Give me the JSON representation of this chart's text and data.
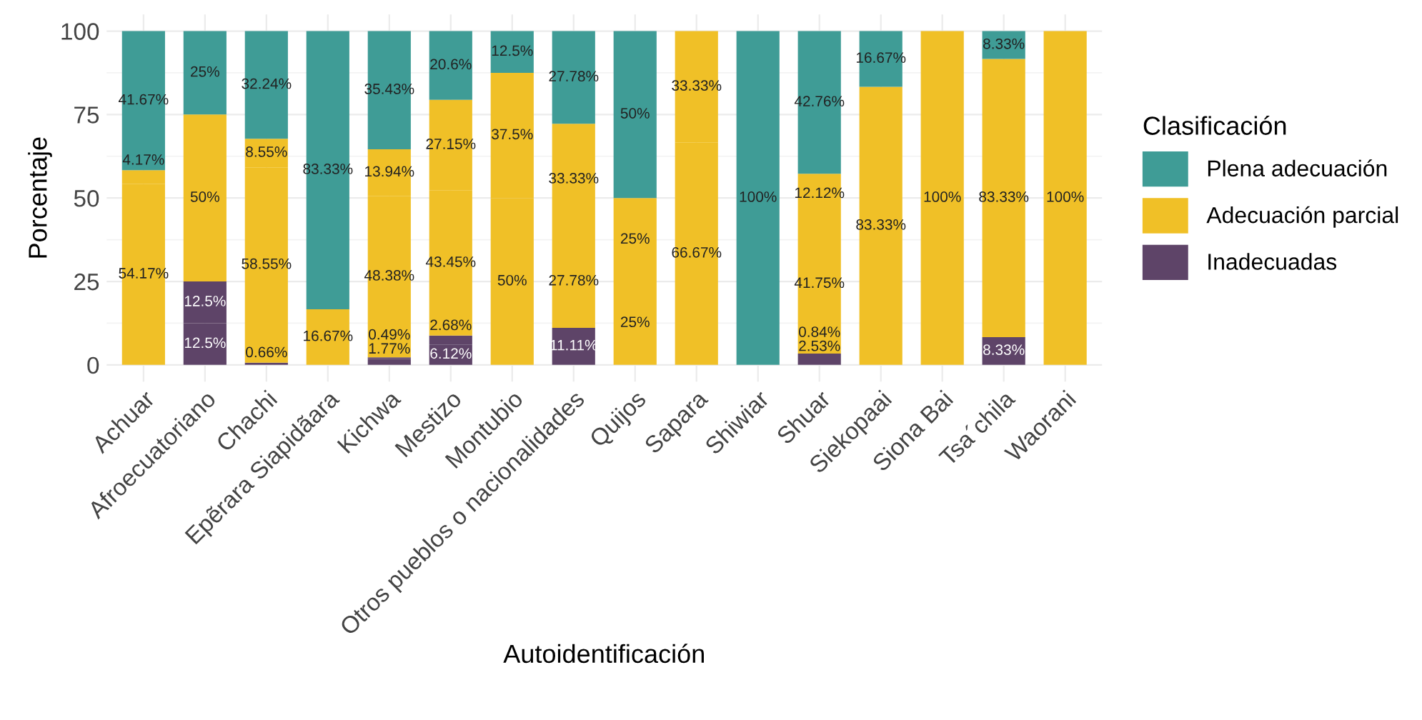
{
  "chart_data": {
    "type": "bar",
    "stacked": true,
    "xlabel": "Autoidentificación",
    "ylabel": "Porcentaje",
    "legend_title": "Clasificación",
    "legend": "right",
    "categories": [
      "Achuar",
      "Afroecuatoriano",
      "Chachi",
      "Epẽrara Siapidãara",
      "Kichwa",
      "Mestizo",
      "Montubio",
      "Otros pueblos o nacionalidades",
      "Quijos",
      "Sapara",
      "Shiwiar",
      "Shuar",
      "Siekopaai",
      "Siona Bai",
      "Tsa´chila",
      "Waorani"
    ],
    "series": [
      {
        "name": "Inadecuadas",
        "color": "#5e4468",
        "values": [
          null,
          12.5,
          0.66,
          null,
          1.77,
          6.12,
          null,
          11.11,
          null,
          null,
          null,
          2.53,
          null,
          null,
          8.33,
          null
        ],
        "value_labels": [
          null,
          "12.5%",
          "0.66%",
          null,
          "1.77%",
          "6.12%",
          null,
          "11.11%",
          null,
          null,
          null,
          "2.53%",
          null,
          null,
          "8.33%",
          null
        ]
      },
      {
        "color": "#5e4468",
        "values": [
          null,
          12.5,
          null,
          null,
          0.49,
          2.68,
          null,
          null,
          null,
          null,
          null,
          0.84,
          null,
          null,
          null,
          null
        ],
        "value_labels": [
          null,
          "12.5%",
          null,
          null,
          "0.49%",
          "2.68%",
          null,
          null,
          null,
          null,
          null,
          "0.84%",
          null,
          null,
          null,
          null
        ]
      },
      {
        "name": "Adecuación parcial",
        "color": "#f0c027",
        "values": [
          54.17,
          50,
          58.55,
          16.67,
          48.38,
          43.45,
          50,
          27.78,
          25,
          66.67,
          null,
          41.75,
          83.33,
          100,
          83.33,
          100
        ],
        "value_labels": [
          "54.17%",
          "50%",
          "58.55%",
          "16.67%",
          "48.38%",
          "43.45%",
          "50%",
          "27.78%",
          "25%",
          "66.67%",
          null,
          "41.75%",
          "83.33%",
          "100%",
          "83.33%",
          "100%"
        ]
      },
      {
        "color": "#f0c027",
        "values": [
          4.17,
          null,
          8.55,
          null,
          13.94,
          27.15,
          37.5,
          33.33,
          25,
          33.33,
          null,
          12.12,
          null,
          null,
          null,
          null
        ],
        "value_labels": [
          "4.17%",
          null,
          "8.55%",
          null,
          "13.94%",
          "27.15%",
          "37.5%",
          "33.33%",
          "25%",
          "33.33%",
          null,
          "12.12%",
          null,
          null,
          null,
          null
        ]
      },
      {
        "name": "Plena adecuación",
        "color": "#3f9c96",
        "values": [
          41.67,
          25,
          32.24,
          83.33,
          35.43,
          20.6,
          12.5,
          27.78,
          50,
          null,
          100,
          42.76,
          16.67,
          null,
          8.33,
          null
        ],
        "value_labels": [
          "41.67%",
          "25%",
          "32.24%",
          "83.33%",
          "35.43%",
          "20.6%",
          "12.5%",
          "27.78%",
          "50%",
          null,
          "100%",
          "42.76%",
          "16.67%",
          null,
          "8.33%",
          null
        ]
      }
    ],
    "ylim": [
      -5,
      105
    ],
    "yticks": [
      0,
      25,
      50,
      75,
      100
    ],
    "grid": true
  }
}
